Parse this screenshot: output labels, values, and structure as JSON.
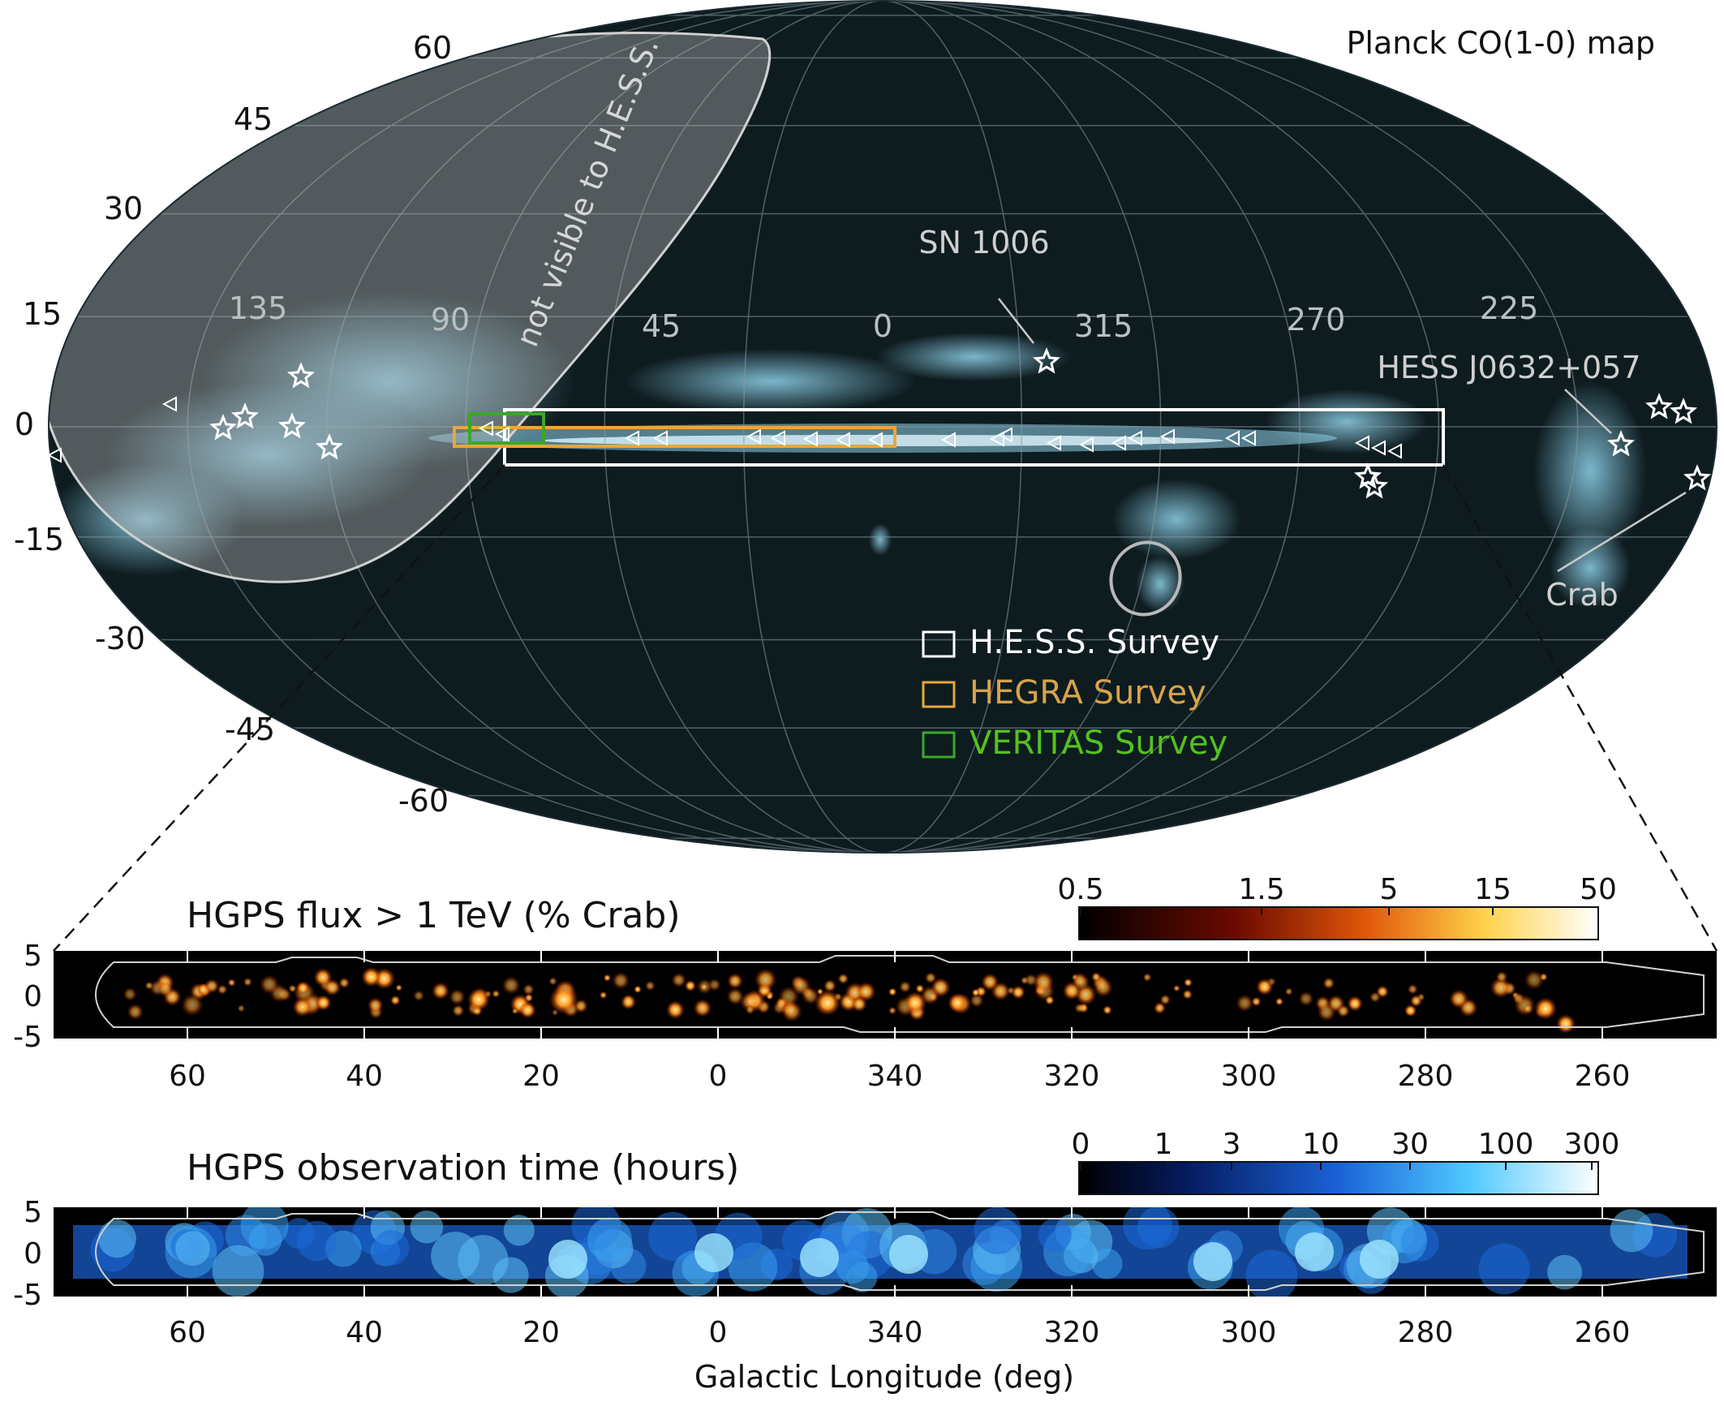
{
  "map": {
    "title": "Planck CO(1-0) map",
    "not_visible_label": "not visible to H.E.S.S.",
    "lat_labels": [
      "60",
      "45",
      "30",
      "15",
      "0",
      "-15",
      "-30",
      "-45",
      "-60"
    ],
    "lon_labels": [
      "135",
      "90",
      "45",
      "0",
      "315",
      "270",
      "225"
    ],
    "sources": {
      "sn1006": "SN 1006",
      "hess_j0632": "HESS J0632+057",
      "crab": "Crab"
    },
    "legend": [
      {
        "label": "H.E.S.S. Survey",
        "color": "#ffffff",
        "text_color": "#ffffff"
      },
      {
        "label": "HEGRA Survey",
        "color": "#e8a73a",
        "text_color": "#d8a34a"
      },
      {
        "label": "VERITAS Survey",
        "color": "#3aa82a",
        "text_color": "#54c21e"
      }
    ],
    "colors": {
      "background": "#0e1c20",
      "co": "#8fd2ea",
      "hess_box": "#ffffff",
      "hegra_box": "#e8a73a",
      "veritas_box": "#3aa82a"
    }
  },
  "flux_panel": {
    "title": "HGPS flux > 1 TeV (% Crab)",
    "colorbar_ticks": [
      "0.5",
      "1.5",
      "5",
      "15",
      "50"
    ],
    "y_ticks": [
      "5",
      "0",
      "-5"
    ],
    "x_ticks": [
      "60",
      "40",
      "20",
      "0",
      "340",
      "320",
      "300",
      "280",
      "260"
    ]
  },
  "time_panel": {
    "title": "HGPS observation time (hours)",
    "colorbar_ticks": [
      "0",
      "1",
      "3",
      "10",
      "30",
      "100",
      "300"
    ],
    "y_ticks": [
      "5",
      "0",
      "-5"
    ],
    "x_ticks": [
      "60",
      "40",
      "20",
      "0",
      "340",
      "320",
      "300",
      "280",
      "260"
    ],
    "xlabel": "Galactic Longitude (deg)"
  }
}
